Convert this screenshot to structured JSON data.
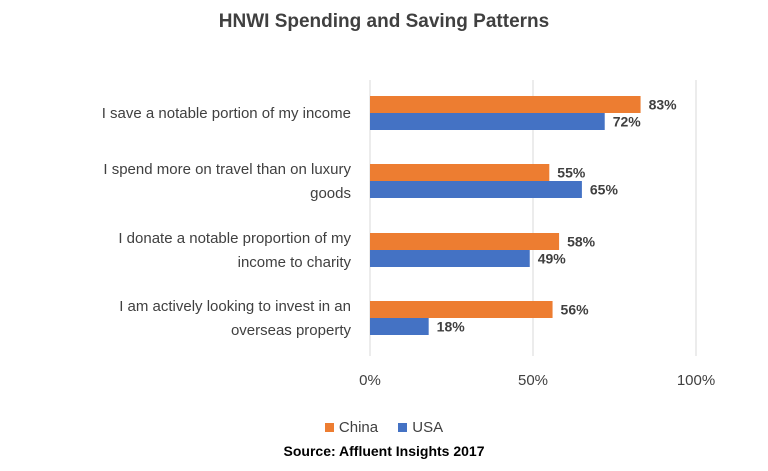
{
  "chart_data": {
    "type": "bar",
    "orientation": "horizontal",
    "title": "HNWI Spending and Saving Patterns",
    "categories": [
      [
        "I save a notable portion of my income"
      ],
      [
        "I spend more on travel than on luxury",
        "goods"
      ],
      [
        "I donate a notable proportion of my",
        "income to charity"
      ],
      [
        "I am actively looking to invest in an",
        "overseas property"
      ]
    ],
    "series": [
      {
        "name": "China",
        "color": "#ED7D31",
        "values": [
          83,
          55,
          58,
          56
        ],
        "labels": [
          "83%",
          "55%",
          "58%",
          "56%"
        ]
      },
      {
        "name": "USA",
        "color": "#4472C4",
        "values": [
          72,
          65,
          49,
          18
        ],
        "labels": [
          "72%",
          "65%",
          "49%",
          "18%"
        ]
      }
    ],
    "xlim": [
      0,
      100
    ],
    "xticks": [
      0,
      50,
      100
    ],
    "xtick_labels": [
      "0%",
      "50%",
      "100%"
    ],
    "grid": true,
    "legend_position": "bottom"
  },
  "source": "Source: Affluent Insights 2017"
}
